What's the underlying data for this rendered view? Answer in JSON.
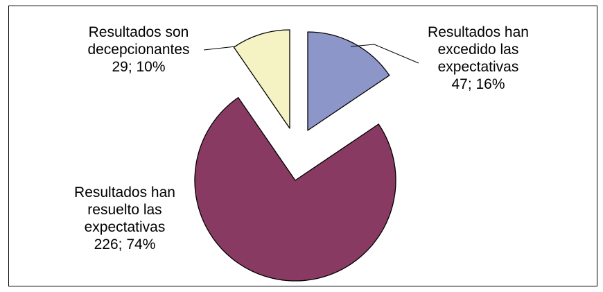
{
  "chart_data": {
    "type": "pie",
    "title": "",
    "legend": "none",
    "slices": [
      {
        "label_lines": [
          "Resultados han",
          "excedido las",
          "expectativas",
          "47; 16%"
        ],
        "value": 47,
        "percent": 16,
        "color": "#8c96c8",
        "exploded": true
      },
      {
        "label_lines": [
          "Resultados han",
          "resuelto las",
          "expectativas",
          "226; 74%"
        ],
        "value": 226,
        "percent": 74,
        "color": "#883a62",
        "exploded": true
      },
      {
        "label_lines": [
          "Resultados son",
          "decepcionantes",
          "29; 10%"
        ],
        "value": 29,
        "percent": 10,
        "color": "#f5f3c4",
        "exploded": true
      }
    ]
  }
}
